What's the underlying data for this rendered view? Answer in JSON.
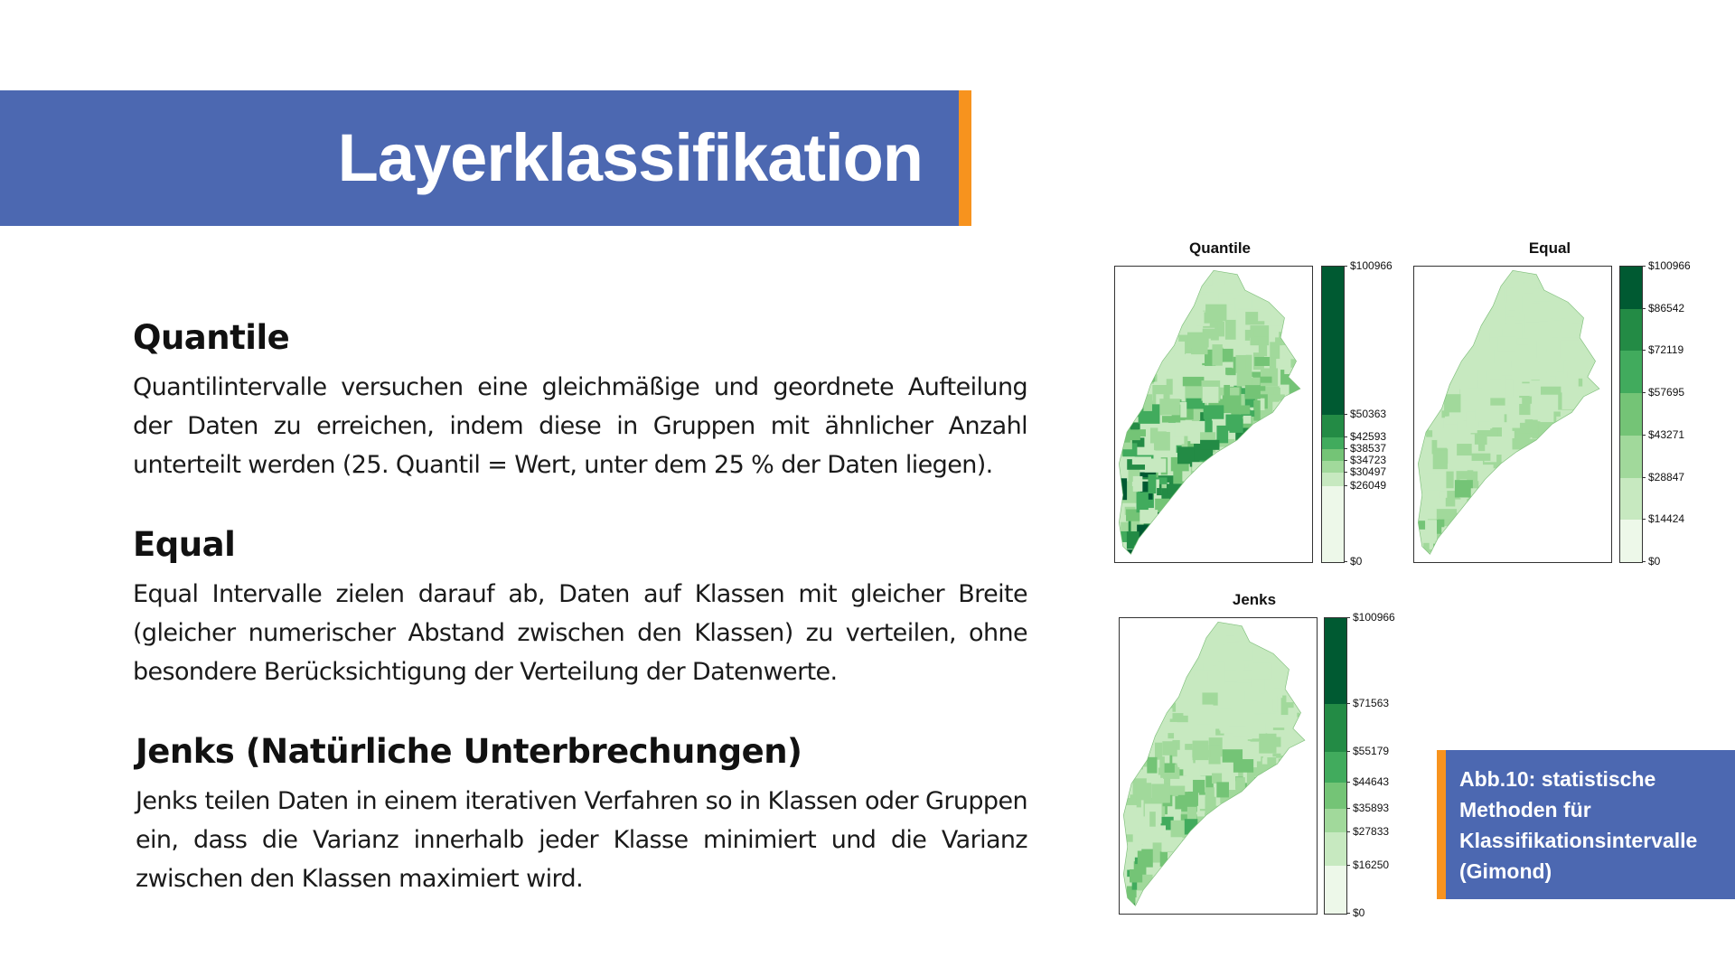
{
  "slide": {
    "title": "Layerklassifikation",
    "colors": {
      "banner": "#4C68B1",
      "accent": "#F7931E"
    }
  },
  "sections": [
    {
      "heading": "Quantile",
      "text": "Quantilintervalle versuchen eine gleichmäßige und geordnete Aufteilung der Daten zu erreichen, indem diese in Gruppen mit ähnlicher Anzahl unterteilt werden (25. Quantil = Wert, unter dem 25 % der Daten liegen)."
    },
    {
      "heading": "Equal",
      "text": "Equal Intervalle zielen darauf ab, Daten auf Klassen mit gleicher Breite (gleicher numerischer Abstand zwischen den Klassen) zu verteilen, ohne besondere Berücksichtigung der Verteilung der Datenwerte."
    },
    {
      "heading": "Jenks (Natürliche Unterbrechungen)",
      "text": "Jenks teilen Daten in einem iterativen Verfahren so in Klassen oder Gruppen ein, dass die Varianz innerhalb jeder Klasse minimiert und die Varianz zwischen den Klassen maximiert wird."
    }
  ],
  "maps": [
    {
      "title": "Quantile",
      "breaks": [
        "$100966",
        "$50363",
        "$42593",
        "$38537",
        "$34723",
        "$30497",
        "$26049",
        "$0"
      ],
      "break_values": [
        100966,
        50363,
        42593,
        38537,
        34723,
        30497,
        26049,
        0
      ],
      "colors": [
        "#005A32",
        "#238B45",
        "#41AB5D",
        "#74C476",
        "#A1D99B",
        "#C7E9C0",
        "#EDF8E9"
      ]
    },
    {
      "title": "Equal",
      "breaks": [
        "$100966",
        "$86542",
        "$72119",
        "$57695",
        "$43271",
        "$28847",
        "$14424",
        "$0"
      ],
      "break_values": [
        100966,
        86542,
        72119,
        57695,
        43271,
        28847,
        14424,
        0
      ],
      "colors": [
        "#005A32",
        "#238B45",
        "#41AB5D",
        "#74C476",
        "#A1D99B",
        "#C7E9C0",
        "#EDF8E9"
      ]
    },
    {
      "title": "Jenks",
      "breaks": [
        "$100966",
        "$71563",
        "$55179",
        "$44643",
        "$35893",
        "$27833",
        "$16250",
        "$0"
      ],
      "break_values": [
        100966,
        71563,
        55179,
        44643,
        35893,
        27833,
        16250,
        0
      ],
      "colors": [
        "#005A32",
        "#238B45",
        "#41AB5D",
        "#74C476",
        "#A1D99B",
        "#C7E9C0",
        "#EDF8E9"
      ]
    }
  ],
  "caption": {
    "lines": [
      "Abb.10: statistische",
      "Methoden für",
      "Klassifikationsintervalle",
      "(Gimond)"
    ]
  }
}
